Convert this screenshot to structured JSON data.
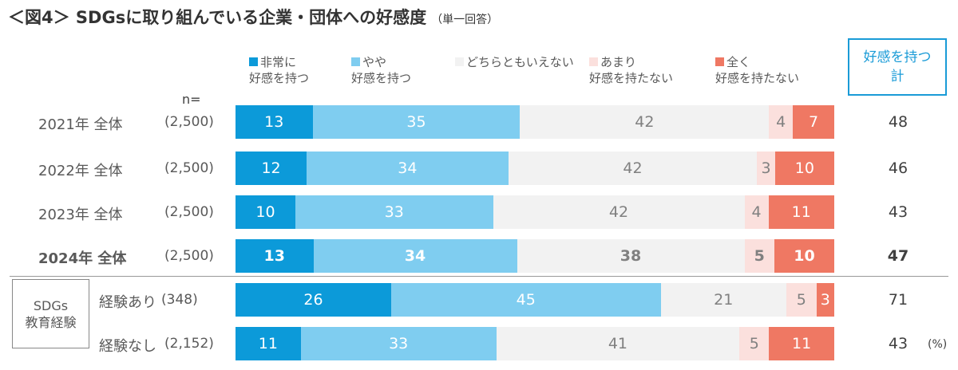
{
  "chart_data": {
    "type": "bar",
    "title": "＜図4＞ SDGsに取り組んでいる企業・団体への好感度",
    "subtitle": "（単一回答）",
    "n_label": "n=",
    "unit": "(%)",
    "total_header": [
      "好感を持つ",
      "計"
    ],
    "legend": [
      {
        "line1": "非常に",
        "line2": "好感を持つ",
        "color": "#0c9ad9"
      },
      {
        "line1": "やや",
        "line2": "好感を持つ",
        "color": "#7fcdf0"
      },
      {
        "line1": "どちらともいえない",
        "line2": "",
        "color": "#f2f2f2"
      },
      {
        "line1": "あまり",
        "line2": "好感を持たない",
        "color": "#fbe0dd"
      },
      {
        "line1": "全く",
        "line2": "好感を持たない",
        "color": "#ef7863"
      }
    ],
    "group_label": [
      "SDGs",
      "教育経験"
    ],
    "rows": [
      {
        "label": "2021年 全体",
        "n": "(2,500)",
        "values": [
          13,
          35,
          42,
          4,
          7
        ],
        "total": 48,
        "bold": false
      },
      {
        "label": "2022年 全体",
        "n": "(2,500)",
        "values": [
          12,
          34,
          42,
          3,
          10
        ],
        "total": 46,
        "bold": false
      },
      {
        "label": "2023年 全体",
        "n": "(2,500)",
        "values": [
          10,
          33,
          42,
          4,
          11
        ],
        "total": 43,
        "bold": false
      },
      {
        "label": "2024年 全体",
        "n": "(2,500)",
        "values": [
          13,
          34,
          38,
          5,
          10
        ],
        "total": 47,
        "bold": true
      },
      {
        "label": "経験あり",
        "n": "(348)",
        "values": [
          26,
          45,
          21,
          5,
          3
        ],
        "total": 71,
        "bold": false
      },
      {
        "label": "経験なし",
        "n": "(2,152)",
        "values": [
          11,
          33,
          41,
          5,
          11
        ],
        "total": 43,
        "bold": false
      }
    ]
  }
}
